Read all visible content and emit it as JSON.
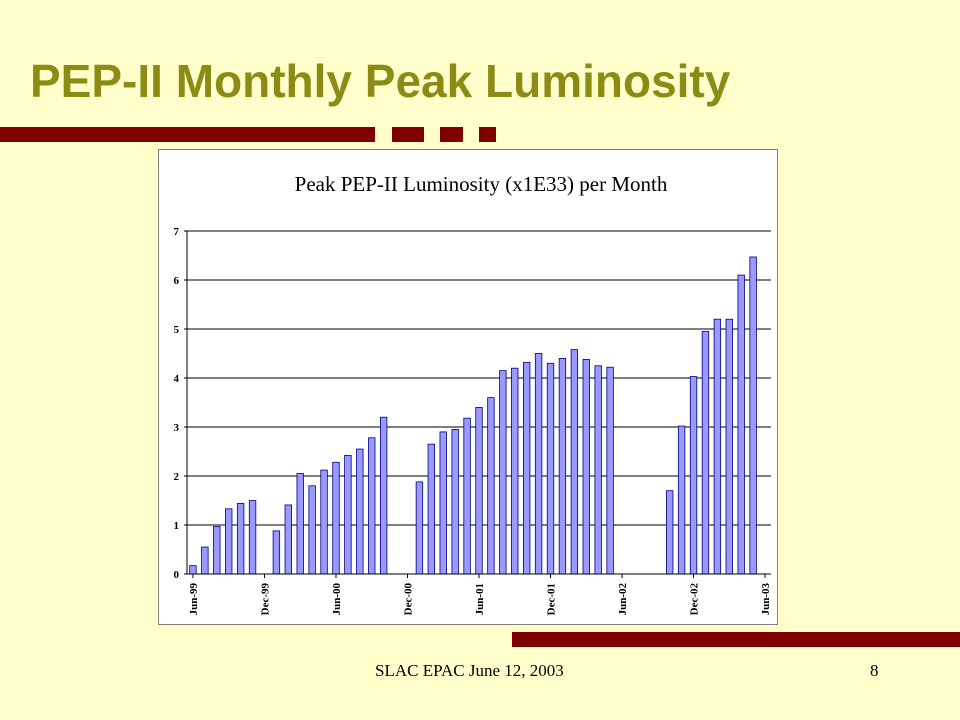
{
  "slide": {
    "title": "PEP-II Monthly Peak Luminosity",
    "footer_left": "SLAC EPAC June 12, 2003",
    "page_number": "8"
  },
  "colors": {
    "background": "#ffffcc",
    "title": "#8c8c14",
    "accent_bar": "#800000",
    "bar_fill": "#9999ff",
    "bar_stroke": "#000080"
  },
  "chart_data": {
    "type": "bar",
    "title": "Peak PEP-II Luminosity (x1E33) per Month",
    "xlabel": "",
    "ylabel": "",
    "ylim": [
      0,
      7
    ],
    "yticks": [
      "0",
      "1",
      "2",
      "3",
      "4",
      "5",
      "6",
      "7"
    ],
    "grid": true,
    "legend": "none",
    "categories": [
      "Jun-99",
      "Jul-99",
      "Aug-99",
      "Sep-99",
      "Oct-99",
      "Nov-99",
      "Dec-99",
      "Jan-00",
      "Feb-00",
      "Mar-00",
      "Apr-00",
      "May-00",
      "Jun-00",
      "Jul-00",
      "Aug-00",
      "Sep-00",
      "Oct-00",
      "Nov-00",
      "Dec-00",
      "Jan-01",
      "Feb-01",
      "Mar-01",
      "Apr-01",
      "May-01",
      "Jun-01",
      "Jul-01",
      "Aug-01",
      "Sep-01",
      "Oct-01",
      "Nov-01",
      "Dec-01",
      "Jan-02",
      "Feb-02",
      "Mar-02",
      "Apr-02",
      "May-02",
      "Jun-02",
      "Jul-02",
      "Aug-02",
      "Sep-02",
      "Oct-02",
      "Nov-02",
      "Dec-02",
      "Jan-03",
      "Feb-03",
      "Mar-03",
      "Apr-03",
      "May-03",
      "Jun-03"
    ],
    "tick_labels": [
      {
        "index": 0,
        "label": "Jun-99"
      },
      {
        "index": 6,
        "label": "Dec-99"
      },
      {
        "index": 12,
        "label": "Jun-00"
      },
      {
        "index": 18,
        "label": "Dec-00"
      },
      {
        "index": 24,
        "label": "Jun-01"
      },
      {
        "index": 30,
        "label": "Dec-01"
      },
      {
        "index": 36,
        "label": "Jun-02"
      },
      {
        "index": 42,
        "label": "Dec-02"
      },
      {
        "index": 48,
        "label": "Jun-03"
      }
    ],
    "values": [
      0.17,
      0.55,
      0.97,
      1.33,
      1.44,
      1.5,
      0,
      0.88,
      1.41,
      2.05,
      1.8,
      2.12,
      2.28,
      2.42,
      2.55,
      2.78,
      3.2,
      0,
      0,
      1.88,
      2.65,
      2.9,
      2.95,
      3.18,
      3.4,
      3.6,
      4.15,
      4.2,
      4.32,
      4.5,
      4.3,
      4.4,
      4.58,
      4.38,
      4.25,
      4.22,
      0,
      0,
      0,
      0,
      1.7,
      3.02,
      4.03,
      4.95,
      5.2,
      5.2,
      6.1,
      6.47,
      0
    ]
  }
}
